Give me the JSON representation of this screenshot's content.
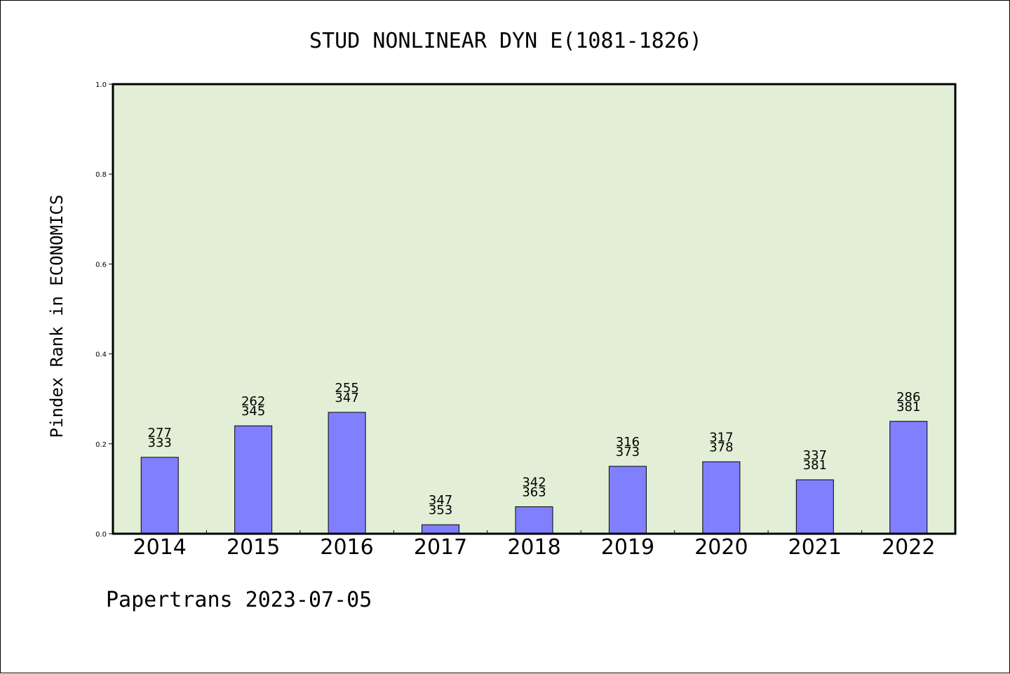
{
  "chart_data": {
    "type": "bar",
    "title": "STUD NONLINEAR DYN E(1081-1826)",
    "ylabel": "Pindex Rank in ECONOMICS",
    "xlabel": "",
    "categories": [
      "2014",
      "2015",
      "2016",
      "2017",
      "2018",
      "2019",
      "2020",
      "2021",
      "2022"
    ],
    "values": [
      0.17,
      0.24,
      0.27,
      0.02,
      0.06,
      0.15,
      0.16,
      0.12,
      0.25
    ],
    "labels_top": [
      "277",
      "262",
      "255",
      "347",
      "342",
      "316",
      "317",
      "337",
      "286"
    ],
    "labels_bottom": [
      "333",
      "345",
      "347",
      "353",
      "363",
      "373",
      "378",
      "381",
      "381"
    ],
    "ylim": [
      0,
      1.0
    ],
    "yticks": [
      "0.0",
      "0.2",
      "0.4",
      "0.6",
      "0.8",
      "1.0"
    ],
    "grid": false,
    "legend": "none",
    "colors": {
      "plot_bg": "#e2efd6",
      "bar": "#8080ff",
      "bar_edge": "#000000"
    }
  },
  "footer": {
    "text": "Papertrans 2023-07-05"
  }
}
